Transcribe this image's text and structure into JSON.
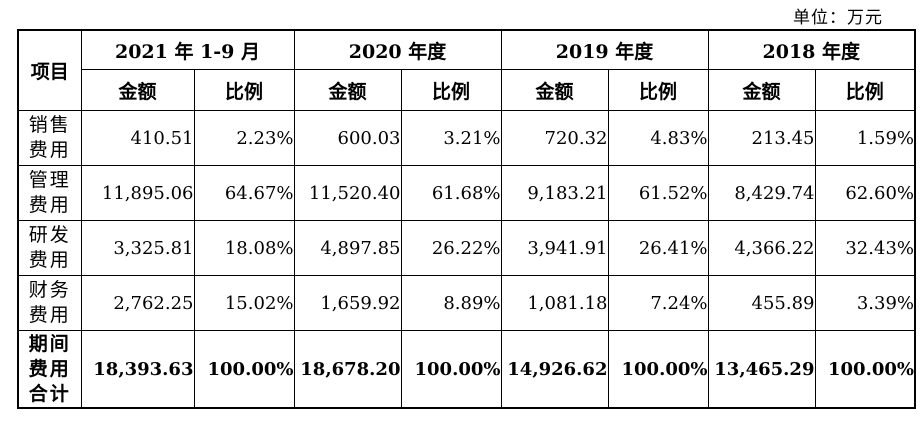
{
  "unit_label": "单位：万元",
  "table": {
    "item_header": "项目",
    "periods": [
      "2021 年 1-9 月",
      "2020 年度",
      "2019 年度",
      "2018 年度"
    ],
    "amount_label": "金额",
    "ratio_label": "比例",
    "rows": [
      {
        "item": "销售费用",
        "cells": [
          "410.51",
          "2.23%",
          "600.03",
          "3.21%",
          "720.32",
          "4.83%",
          "213.45",
          "1.59%"
        ]
      },
      {
        "item": "管理费用",
        "cells": [
          "11,895.06",
          "64.67%",
          "11,520.40",
          "61.68%",
          "9,183.21",
          "61.52%",
          "8,429.74",
          "62.60%"
        ]
      },
      {
        "item": "研发费用",
        "cells": [
          "3,325.81",
          "18.08%",
          "4,897.85",
          "26.22%",
          "3,941.91",
          "26.41%",
          "4,366.22",
          "32.43%"
        ]
      },
      {
        "item": "财务费用",
        "cells": [
          "2,762.25",
          "15.02%",
          "1,659.92",
          "8.89%",
          "1,081.18",
          "7.24%",
          "455.89",
          "3.39%"
        ]
      },
      {
        "item": "期间费用合计",
        "cells": [
          "18,393.63",
          "100.00%",
          "18,678.20",
          "100.00%",
          "14,926.62",
          "100.00%",
          "13,465.29",
          "100.00%"
        ]
      }
    ]
  }
}
